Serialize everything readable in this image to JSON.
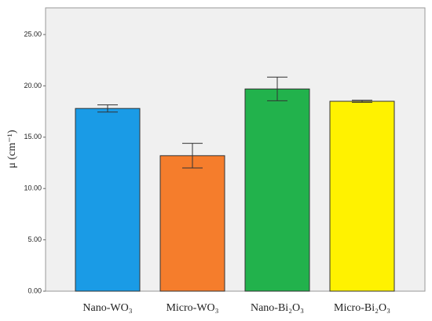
{
  "chart_data": {
    "type": "bar",
    "ylabel": "μ (cm⁻¹)",
    "categories": [
      "Nano-WO₃",
      "Micro-WO₃",
      "Nano-Bi₂O₃",
      "Micro-Bi₂O₃"
    ],
    "values": [
      17.8,
      13.2,
      19.7,
      18.5
    ],
    "errors": [
      0.35,
      1.2,
      1.15,
      0.1
    ],
    "colors": [
      "#1a9be6",
      "#f57d2c",
      "#22b24c",
      "#fff200"
    ],
    "ylim": [
      0,
      27.6
    ],
    "yticks": [
      {
        "value": 0,
        "label": "0.00"
      },
      {
        "value": 5,
        "label": "5.00"
      },
      {
        "value": 10,
        "label": "10.00"
      },
      {
        "value": 15,
        "label": "15.00"
      },
      {
        "value": 20,
        "label": "20.00"
      },
      {
        "value": 25,
        "label": "25.00"
      }
    ]
  }
}
